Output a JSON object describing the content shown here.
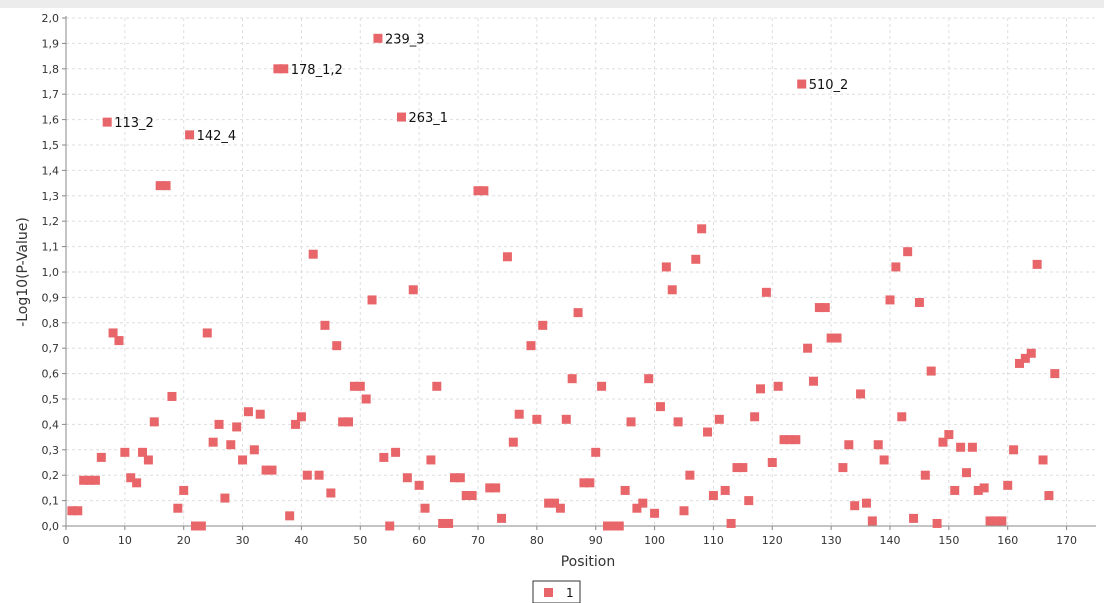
{
  "chart_data": {
    "type": "scatter",
    "xlabel": "Position",
    "ylabel": "-Log10(P-Value)",
    "xlim": [
      0,
      175
    ],
    "ylim": [
      0,
      2.0
    ],
    "x_ticks": [
      0,
      10,
      20,
      30,
      40,
      50,
      60,
      70,
      80,
      90,
      100,
      110,
      120,
      130,
      140,
      150,
      160,
      170
    ],
    "x_tick_labels": [
      "0",
      "10",
      "20",
      "30",
      "40",
      "50",
      "60",
      "70",
      "80",
      "90",
      "100",
      "110",
      "120",
      "130",
      "140",
      "150",
      "160",
      "170"
    ],
    "y_ticks": [
      0,
      0.1,
      0.2,
      0.3,
      0.4,
      0.5,
      0.6,
      0.7,
      0.8,
      0.9,
      1.0,
      1.1,
      1.2,
      1.3,
      1.4,
      1.5,
      1.6,
      1.7,
      1.8,
      1.9,
      2.0
    ],
    "y_tick_labels": [
      "0,0",
      "0,1",
      "0,2",
      "0,3",
      "0,4",
      "0,5",
      "0,6",
      "0,7",
      "0,8",
      "0,9",
      "1,0",
      "1,1",
      "1,2",
      "1,3",
      "1,4",
      "1,5",
      "1,6",
      "1,7",
      "1,8",
      "1,9",
      "2,0"
    ],
    "grid": true,
    "legend": "bottom-center",
    "series": [
      {
        "name": "1",
        "color": "#e8666a",
        "points": [
          [
            1,
            0.06
          ],
          [
            2,
            0.06
          ],
          [
            3,
            0.18
          ],
          [
            4,
            0.18
          ],
          [
            5,
            0.18
          ],
          [
            6,
            0.27
          ],
          [
            7,
            1.59
          ],
          [
            8,
            0.76
          ],
          [
            9,
            0.73
          ],
          [
            10,
            0.29
          ],
          [
            11,
            0.19
          ],
          [
            12,
            0.17
          ],
          [
            13,
            0.29
          ],
          [
            14,
            0.26
          ],
          [
            15,
            0.41
          ],
          [
            16,
            1.34
          ],
          [
            17,
            1.34
          ],
          [
            18,
            0.51
          ],
          [
            19,
            0.07
          ],
          [
            20,
            0.14
          ],
          [
            21,
            1.54
          ],
          [
            22,
            0.0
          ],
          [
            23,
            0.0
          ],
          [
            24,
            0.76
          ],
          [
            25,
            0.33
          ],
          [
            26,
            0.4
          ],
          [
            27,
            0.11
          ],
          [
            28,
            0.32
          ],
          [
            29,
            0.39
          ],
          [
            30,
            0.26
          ],
          [
            31,
            0.45
          ],
          [
            32,
            0.3
          ],
          [
            33,
            0.44
          ],
          [
            34,
            0.22
          ],
          [
            35,
            0.22
          ],
          [
            36,
            1.8
          ],
          [
            37,
            1.8
          ],
          [
            38,
            0.04
          ],
          [
            39,
            0.4
          ],
          [
            40,
            0.43
          ],
          [
            41,
            0.2
          ],
          [
            42,
            1.07
          ],
          [
            43,
            0.2
          ],
          [
            44,
            0.79
          ],
          [
            45,
            0.13
          ],
          [
            46,
            0.71
          ],
          [
            47,
            0.41
          ],
          [
            48,
            0.41
          ],
          [
            49,
            0.55
          ],
          [
            50,
            0.55
          ],
          [
            51,
            0.5
          ],
          [
            52,
            0.89
          ],
          [
            53,
            1.92
          ],
          [
            54,
            0.27
          ],
          [
            55,
            0.0
          ],
          [
            56,
            0.29
          ],
          [
            57,
            1.61
          ],
          [
            58,
            0.19
          ],
          [
            59,
            0.93
          ],
          [
            60,
            0.16
          ],
          [
            61,
            0.07
          ],
          [
            62,
            0.26
          ],
          [
            63,
            0.55
          ],
          [
            64,
            0.01
          ],
          [
            65,
            0.01
          ],
          [
            66,
            0.19
          ],
          [
            67,
            0.19
          ],
          [
            68,
            0.12
          ],
          [
            69,
            0.12
          ],
          [
            70,
            1.32
          ],
          [
            71,
            1.32
          ],
          [
            72,
            0.15
          ],
          [
            73,
            0.15
          ],
          [
            74,
            0.03
          ],
          [
            75,
            1.06
          ],
          [
            76,
            0.33
          ],
          [
            77,
            0.44
          ],
          [
            79,
            0.71
          ],
          [
            80,
            0.42
          ],
          [
            81,
            0.79
          ],
          [
            82,
            0.09
          ],
          [
            83,
            0.09
          ],
          [
            84,
            0.07
          ],
          [
            85,
            0.42
          ],
          [
            86,
            0.58
          ],
          [
            87,
            0.84
          ],
          [
            88,
            0.17
          ],
          [
            89,
            0.17
          ],
          [
            90,
            0.29
          ],
          [
            91,
            0.55
          ],
          [
            92,
            0.0
          ],
          [
            93,
            0.0
          ],
          [
            94,
            0.0
          ],
          [
            95,
            0.14
          ],
          [
            96,
            0.41
          ],
          [
            97,
            0.07
          ],
          [
            98,
            0.09
          ],
          [
            99,
            0.58
          ],
          [
            100,
            0.05
          ],
          [
            101,
            0.47
          ],
          [
            102,
            1.02
          ],
          [
            103,
            0.93
          ],
          [
            104,
            0.41
          ],
          [
            105,
            0.06
          ],
          [
            106,
            0.2
          ],
          [
            107,
            1.05
          ],
          [
            108,
            1.17
          ],
          [
            109,
            0.37
          ],
          [
            110,
            0.12
          ],
          [
            111,
            0.42
          ],
          [
            112,
            0.14
          ],
          [
            113,
            0.01
          ],
          [
            114,
            0.23
          ],
          [
            115,
            0.23
          ],
          [
            116,
            0.1
          ],
          [
            117,
            0.43
          ],
          [
            118,
            0.54
          ],
          [
            119,
            0.92
          ],
          [
            120,
            0.25
          ],
          [
            121,
            0.55
          ],
          [
            122,
            0.34
          ],
          [
            123,
            0.34
          ],
          [
            124,
            0.34
          ],
          [
            125,
            1.74
          ],
          [
            126,
            0.7
          ],
          [
            127,
            0.57
          ],
          [
            128,
            0.86
          ],
          [
            129,
            0.86
          ],
          [
            130,
            0.74
          ],
          [
            131,
            0.74
          ],
          [
            132,
            0.23
          ],
          [
            133,
            0.32
          ],
          [
            134,
            0.08
          ],
          [
            135,
            0.52
          ],
          [
            136,
            0.09
          ],
          [
            137,
            0.02
          ],
          [
            138,
            0.32
          ],
          [
            139,
            0.26
          ],
          [
            140,
            0.89
          ],
          [
            141,
            1.02
          ],
          [
            142,
            0.43
          ],
          [
            143,
            1.08
          ],
          [
            144,
            0.03
          ],
          [
            145,
            0.88
          ],
          [
            146,
            0.2
          ],
          [
            147,
            0.61
          ],
          [
            148,
            0.01
          ],
          [
            149,
            0.33
          ],
          [
            150,
            0.36
          ],
          [
            151,
            0.14
          ],
          [
            152,
            0.31
          ],
          [
            153,
            0.21
          ],
          [
            154,
            0.31
          ],
          [
            155,
            0.14
          ],
          [
            156,
            0.15
          ],
          [
            157,
            0.02
          ],
          [
            158,
            0.02
          ],
          [
            159,
            0.02
          ],
          [
            160,
            0.16
          ],
          [
            161,
            0.3
          ],
          [
            162,
            0.64
          ],
          [
            163,
            0.66
          ],
          [
            164,
            0.68
          ],
          [
            165,
            1.03
          ],
          [
            166,
            0.26
          ],
          [
            167,
            0.12
          ],
          [
            168,
            0.6
          ]
        ]
      }
    ],
    "annotations": [
      {
        "text": "113_2",
        "x": 7,
        "y": 1.59
      },
      {
        "text": "142_4",
        "x": 21,
        "y": 1.54
      },
      {
        "text": "178_1,2",
        "x": 37,
        "y": 1.8
      },
      {
        "text": "239_3",
        "x": 53,
        "y": 1.92
      },
      {
        "text": "263_1",
        "x": 57,
        "y": 1.61
      },
      {
        "text": "510_2",
        "x": 125,
        "y": 1.74
      }
    ]
  }
}
